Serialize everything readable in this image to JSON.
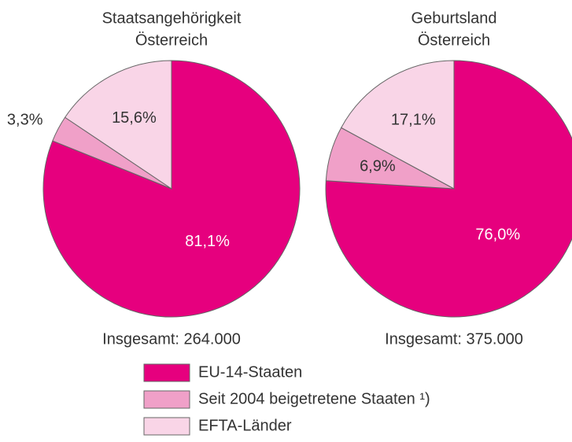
{
  "chart_data": [
    {
      "type": "pie",
      "title": [
        "Staatsangehörigkeit",
        "Österreich"
      ],
      "categories": [
        "EU-14-Staaten",
        "Seit 2004 beigetretene Staaten ¹)",
        "EFTA-Länder"
      ],
      "values": [
        81.1,
        3.3,
        15.6
      ],
      "value_labels": [
        "81,1%",
        "3,3%",
        "15,6%"
      ],
      "colors": [
        "#e6007e",
        "#f0a0c8",
        "#f9d5e7"
      ],
      "total": "Insgesamt: 264.000"
    },
    {
      "type": "pie",
      "title": [
        "Geburtsland",
        "Österreich"
      ],
      "categories": [
        "EU-14-Staaten",
        "Seit 2004 beigetretene Staaten ¹)",
        "EFTA-Länder"
      ],
      "values": [
        76.0,
        6.9,
        17.1
      ],
      "value_labels": [
        "76,0%",
        "6,9%",
        "17,1%"
      ],
      "colors": [
        "#e6007e",
        "#f0a0c8",
        "#f9d5e7"
      ],
      "total": "Insgesamt: 375.000"
    }
  ]
}
